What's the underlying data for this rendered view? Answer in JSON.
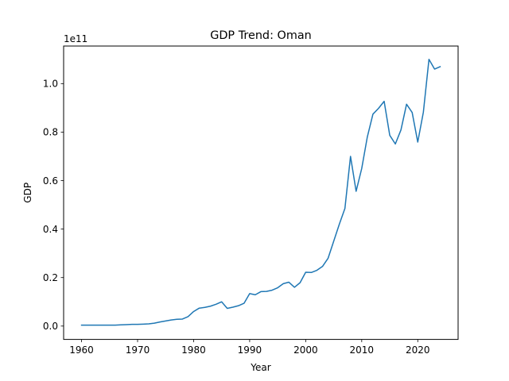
{
  "chart_data": {
    "type": "line",
    "title": "GDP Trend: Oman",
    "xlabel": "Year",
    "ylabel": "GDP",
    "y_offset_label": "1e11",
    "xlim": [
      1956.8,
      2027.2
    ],
    "ylim": [
      -5500000000.0,
      115500000000.0
    ],
    "x_ticks": [
      1960,
      1970,
      1980,
      1990,
      2000,
      2010,
      2020
    ],
    "y_ticks": [
      0.0,
      20000000000.0,
      40000000000.0,
      60000000000.0,
      80000000000.0,
      100000000000.0
    ],
    "y_tick_labels": [
      "0.0",
      "0.2",
      "0.4",
      "0.6",
      "0.8",
      "1.0"
    ],
    "grid": false,
    "color": "#1f77b4",
    "series": [
      {
        "x": [
          1960,
          1961,
          1962,
          1963,
          1964,
          1965,
          1966,
          1967,
          1968,
          1969,
          1970,
          1971,
          1972,
          1973,
          1974,
          1975,
          1976,
          1977,
          1978,
          1979,
          1980,
          1981,
          1982,
          1983,
          1984,
          1985,
          1986,
          1987,
          1988,
          1989,
          1990,
          1991,
          1992,
          1993,
          1994,
          1995,
          1996,
          1997,
          1998,
          1999,
          2000,
          2001,
          2002,
          2003,
          2004,
          2005,
          2006,
          2007,
          2008,
          2009,
          2010,
          2011,
          2012,
          2013,
          2014,
          2015,
          2016,
          2017,
          2018,
          2019,
          2020,
          2021,
          2022,
          2023,
          2024
        ],
        "values": [
          400000000.0,
          400000000.0,
          400000000.0,
          400000000.0,
          400000000.0,
          400000000.0,
          400000000.0,
          500000000.0,
          600000000.0,
          700000000.0,
          700000000.0,
          800000000.0,
          900000000.0,
          1200000000.0,
          1700000000.0,
          2100000000.0,
          2500000000.0,
          2800000000.0,
          2900000000.0,
          3900000000.0,
          6000000000.0,
          7400000000.0,
          7700000000.0,
          8200000000.0,
          9000000000.0,
          10000000000.0,
          7300000000.0,
          7800000000.0,
          8400000000.0,
          9400000000.0,
          13400000000.0,
          12900000000.0,
          14200000000.0,
          14300000000.0,
          14800000000.0,
          15800000000.0,
          17500000000.0,
          18100000000.0,
          16000000000.0,
          17900000000.0,
          22200000000.0,
          22100000000.0,
          23000000000.0,
          24600000000.0,
          28000000000.0,
          35000000000.0,
          42000000000.0,
          48500000000.0,
          70000000000.0,
          55600000000.0,
          65000000000.0,
          78000000000.0,
          87400000000.0,
          89800000000.0,
          92700000000.0,
          78700000000.0,
          75100000000.0,
          80900000000.0,
          91500000000.0,
          88100000000.0,
          75900000000.0,
          88200000000.0,
          110000000000.0,
          106000000000.0,
          107000000000.0
        ]
      }
    ]
  }
}
